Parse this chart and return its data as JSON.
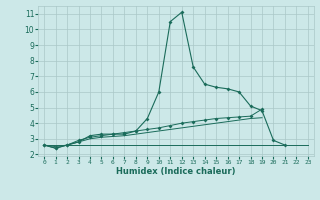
{
  "xlabel": "Humidex (Indice chaleur)",
  "x_values": [
    0,
    1,
    2,
    3,
    4,
    5,
    6,
    7,
    8,
    9,
    10,
    11,
    12,
    13,
    14,
    15,
    16,
    17,
    18,
    19,
    20,
    21,
    22,
    23
  ],
  "line1_y": [
    2.6,
    2.4,
    2.6,
    2.8,
    3.2,
    3.3,
    3.3,
    3.3,
    3.5,
    4.3,
    6.0,
    10.5,
    11.1,
    7.6,
    6.5,
    6.3,
    6.2,
    6.0,
    5.1,
    4.8,
    2.9,
    2.6,
    null,
    null
  ],
  "line2_y": [
    2.6,
    2.4,
    2.6,
    2.9,
    3.1,
    3.2,
    3.3,
    3.4,
    3.5,
    3.6,
    3.7,
    3.85,
    4.0,
    4.1,
    4.2,
    4.3,
    4.35,
    4.4,
    4.45,
    4.9,
    null,
    null,
    null,
    null
  ],
  "line3_y": [
    2.6,
    2.5,
    2.6,
    2.8,
    3.0,
    3.1,
    3.15,
    3.2,
    3.3,
    3.4,
    3.5,
    3.6,
    3.7,
    3.8,
    3.9,
    4.0,
    4.1,
    4.2,
    4.3,
    4.35,
    null,
    null,
    null,
    null
  ],
  "line4_y": [
    2.6,
    2.6,
    2.6,
    2.6,
    2.6,
    2.6,
    2.6,
    2.6,
    2.6,
    2.6,
    2.6,
    2.6,
    2.6,
    2.6,
    2.6,
    2.6,
    2.6,
    2.6,
    2.6,
    2.6,
    2.6,
    2.6,
    2.6,
    2.6
  ],
  "color": "#1a6b5a",
  "bg_color": "#cce8e8",
  "grid_color": "#aac8c8",
  "ylim": [
    1.9,
    11.5
  ],
  "yticks": [
    2,
    3,
    4,
    5,
    6,
    7,
    8,
    9,
    10,
    11
  ],
  "xlim": [
    -0.5,
    23.5
  ],
  "marker": "D",
  "markersize": 2.0
}
